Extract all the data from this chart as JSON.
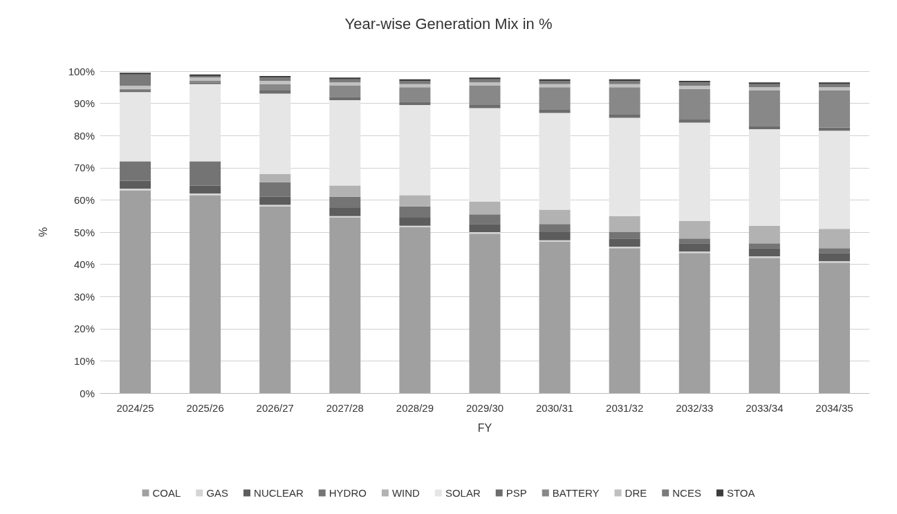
{
  "chart_data": {
    "type": "bar",
    "title": "Year-wise Generation Mix in %",
    "xlabel": "FY",
    "ylabel": "%",
    "stacked": true,
    "grid": "y",
    "legend": "bottom",
    "categories": [
      "2024/25",
      "2025/26",
      "2026/27",
      "2027/28",
      "2028/29",
      "2029/30",
      "2030/31",
      "2031/32",
      "2032/33",
      "2033/34",
      "2034/35"
    ],
    "ylim": [
      0,
      100
    ],
    "yticks": [
      {
        "value": 0,
        "label": "0%"
      },
      {
        "value": 10,
        "label": "10%"
      },
      {
        "value": 20,
        "label": "20%"
      },
      {
        "value": 30,
        "label": "30%"
      },
      {
        "value": 40,
        "label": "40%"
      },
      {
        "value": 50,
        "label": "50%"
      },
      {
        "value": 60,
        "label": "60%"
      },
      {
        "value": 70,
        "label": "70%"
      },
      {
        "value": 80,
        "label": "80%"
      },
      {
        "value": 90,
        "label": "90%"
      },
      {
        "value": 100,
        "label": "100%"
      }
    ],
    "series": [
      {
        "name": "COAL",
        "color": "#a0a0a0",
        "values": [
          63,
          61.5,
          58,
          54.5,
          51.5,
          49.5,
          47,
          45,
          43.5,
          42,
          40.5
        ]
      },
      {
        "name": "GAS",
        "color": "#d4d4d4",
        "values": [
          0.5,
          0.5,
          0.5,
          0.5,
          0.5,
          0.5,
          0.5,
          0.5,
          0.5,
          0.5,
          0.5
        ]
      },
      {
        "name": "NUCLEAR",
        "color": "#5c5c5c",
        "values": [
          2.5,
          2.5,
          2.5,
          2.5,
          2.5,
          2.5,
          2.5,
          2.5,
          2.5,
          2.5,
          2.5
        ]
      },
      {
        "name": "HYDRO",
        "color": "#747474",
        "values": [
          6,
          7.5,
          4.5,
          3.5,
          3.5,
          3,
          2.5,
          2,
          1.5,
          1.5,
          1.5
        ]
      },
      {
        "name": "WIND",
        "color": "#b2b2b2",
        "values": [
          0,
          0,
          2.5,
          3.5,
          3.5,
          4,
          4.5,
          5,
          5.5,
          5.5,
          6
        ]
      },
      {
        "name": "SOLAR",
        "color": "#e6e6e6",
        "values": [
          21.5,
          24,
          25,
          26.5,
          28,
          29,
          30,
          30.5,
          30.5,
          30,
          30.5
        ]
      },
      {
        "name": "PSP",
        "color": "#6c6c6c",
        "values": [
          0.5,
          0.5,
          1,
          1,
          1,
          1,
          1,
          1,
          1,
          1,
          1
        ]
      },
      {
        "name": "BATTERY",
        "color": "#888888",
        "values": [
          0.5,
          0.5,
          2,
          3.5,
          4.5,
          6,
          7,
          8.5,
          9.5,
          11,
          11.5
        ]
      },
      {
        "name": "DRE",
        "color": "#c0c0c0",
        "values": [
          1,
          1,
          1,
          1,
          1,
          1,
          1,
          1,
          1,
          1,
          1
        ]
      },
      {
        "name": "NCES",
        "color": "#7a7a7a",
        "values": [
          3.5,
          0.5,
          1,
          1,
          1,
          1,
          1,
          1,
          1,
          1,
          1
        ]
      },
      {
        "name": "STOA",
        "color": "#3c3c3c",
        "values": [
          0.5,
          0.5,
          0.5,
          0.5,
          0.5,
          0.5,
          0.5,
          0.5,
          0.5,
          0.5,
          0.5
        ]
      }
    ]
  }
}
